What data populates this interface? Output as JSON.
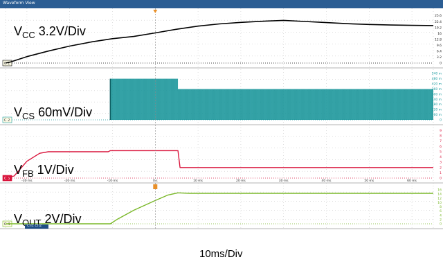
{
  "window": {
    "title": "Waveform View"
  },
  "time_per_div_label": "10ms/Div",
  "badge_text": "Ch1 Ch2",
  "colors": {
    "bg": "#ffffff",
    "grid": "#c9c9c9",
    "titlebar": "#2b5d93"
  },
  "chart_data": {
    "type": "line",
    "x_axis": {
      "unit": "ms",
      "range": [
        -35,
        65
      ],
      "tick_labels": [
        "-30 ms",
        "-20 ms",
        "-10 ms",
        "0 s",
        "10 ms",
        "20 ms",
        "30 ms",
        "40 ms",
        "50 ms",
        "60 ms"
      ],
      "tick_values": [
        -30,
        -20,
        -10,
        0,
        10,
        20,
        30,
        40,
        50,
        60
      ],
      "trigger_time": 0
    },
    "channels": [
      {
        "id": "C 1",
        "label_main": "V",
        "label_sub": "CC",
        "label_rest": " 3.2V/Div",
        "color": "#000000",
        "y_range": [
          0,
          27
        ],
        "y_ticks": [
          "25.6",
          "22.4",
          "19.2",
          "16",
          "12.8",
          "9.6",
          "6.4",
          "3.2",
          "0"
        ],
        "y_tick_values": [
          25.6,
          22.4,
          19.2,
          16,
          12.8,
          9.6,
          6.4,
          3.2,
          0
        ],
        "x": [
          -35,
          -34,
          -30,
          -25,
          -20,
          -15,
          -10,
          -5,
          0,
          5,
          10,
          15,
          20,
          25,
          30,
          35,
          40,
          45,
          50,
          55,
          60,
          65
        ],
        "values": [
          0,
          0.5,
          3.5,
          6.5,
          9.2,
          11.4,
          13.2,
          14.4,
          16.3,
          18.3,
          20.0,
          21.2,
          22.0,
          22.6,
          23.1,
          22.5,
          21.9,
          21.3,
          20.9,
          20.6,
          20.4,
          20.3
        ]
      },
      {
        "id": "C 2",
        "label_main": "V",
        "label_sub": "CS",
        "label_rest": " 60mV/Div",
        "color": "#1a9ba0",
        "y_range": [
          0,
          0.55
        ],
        "y_ticks": [
          "540 m",
          "480 m",
          "420 m",
          "360 m",
          "300 m",
          "240 m",
          "180 m",
          "120 m",
          "60 m",
          "0"
        ],
        "y_tick_values": [
          0.54,
          0.48,
          0.42,
          0.36,
          0.3,
          0.24,
          0.18,
          0.12,
          0.06,
          0
        ],
        "switching_start": -10.5,
        "drop_time": 5.3,
        "envelope_x": [
          -10.5,
          5.3,
          5.3,
          65
        ],
        "envelope_top": [
          0.48,
          0.48,
          0.36,
          0.36
        ],
        "envelope_bottom": [
          0.0,
          0.0,
          0.0,
          0.0
        ]
      },
      {
        "id": "C 3",
        "label_main": "V",
        "label_sub": "FB",
        "label_rest": " 1V/Div",
        "color": "#d9153c",
        "y_range": [
          0,
          9.2
        ],
        "y_ticks": [
          "9",
          "8",
          "7",
          "6",
          "5",
          "4",
          "3",
          "2",
          "1",
          "0"
        ],
        "y_tick_values": [
          9,
          8,
          7,
          6,
          5,
          4,
          3,
          2,
          1,
          0
        ],
        "x": [
          -35,
          -33,
          -30,
          -27,
          -25,
          -11,
          -10.5,
          5.3,
          5.8,
          65
        ],
        "values": [
          0,
          0.4,
          3.2,
          4.7,
          5.0,
          5.0,
          5.2,
          5.2,
          2.0,
          2.0
        ]
      },
      {
        "id": "C 4",
        "label_main": "V",
        "label_sub": "OUT",
        "label_rest": " 2V/Div",
        "color": "#7ab829",
        "y_range": [
          0,
          17
        ],
        "y_ticks": [
          "16",
          "14",
          "12",
          "10",
          "8",
          "6",
          "4",
          "2",
          "0"
        ],
        "y_tick_values": [
          16,
          14,
          12,
          10,
          8,
          6,
          4,
          2,
          0
        ],
        "x": [
          -35,
          -10.5,
          -9,
          -5,
          0,
          3,
          5.3,
          8,
          65
        ],
        "values": [
          0,
          0,
          2.0,
          6.4,
          11.0,
          13.6,
          14.6,
          14.4,
          14.4
        ]
      }
    ]
  }
}
